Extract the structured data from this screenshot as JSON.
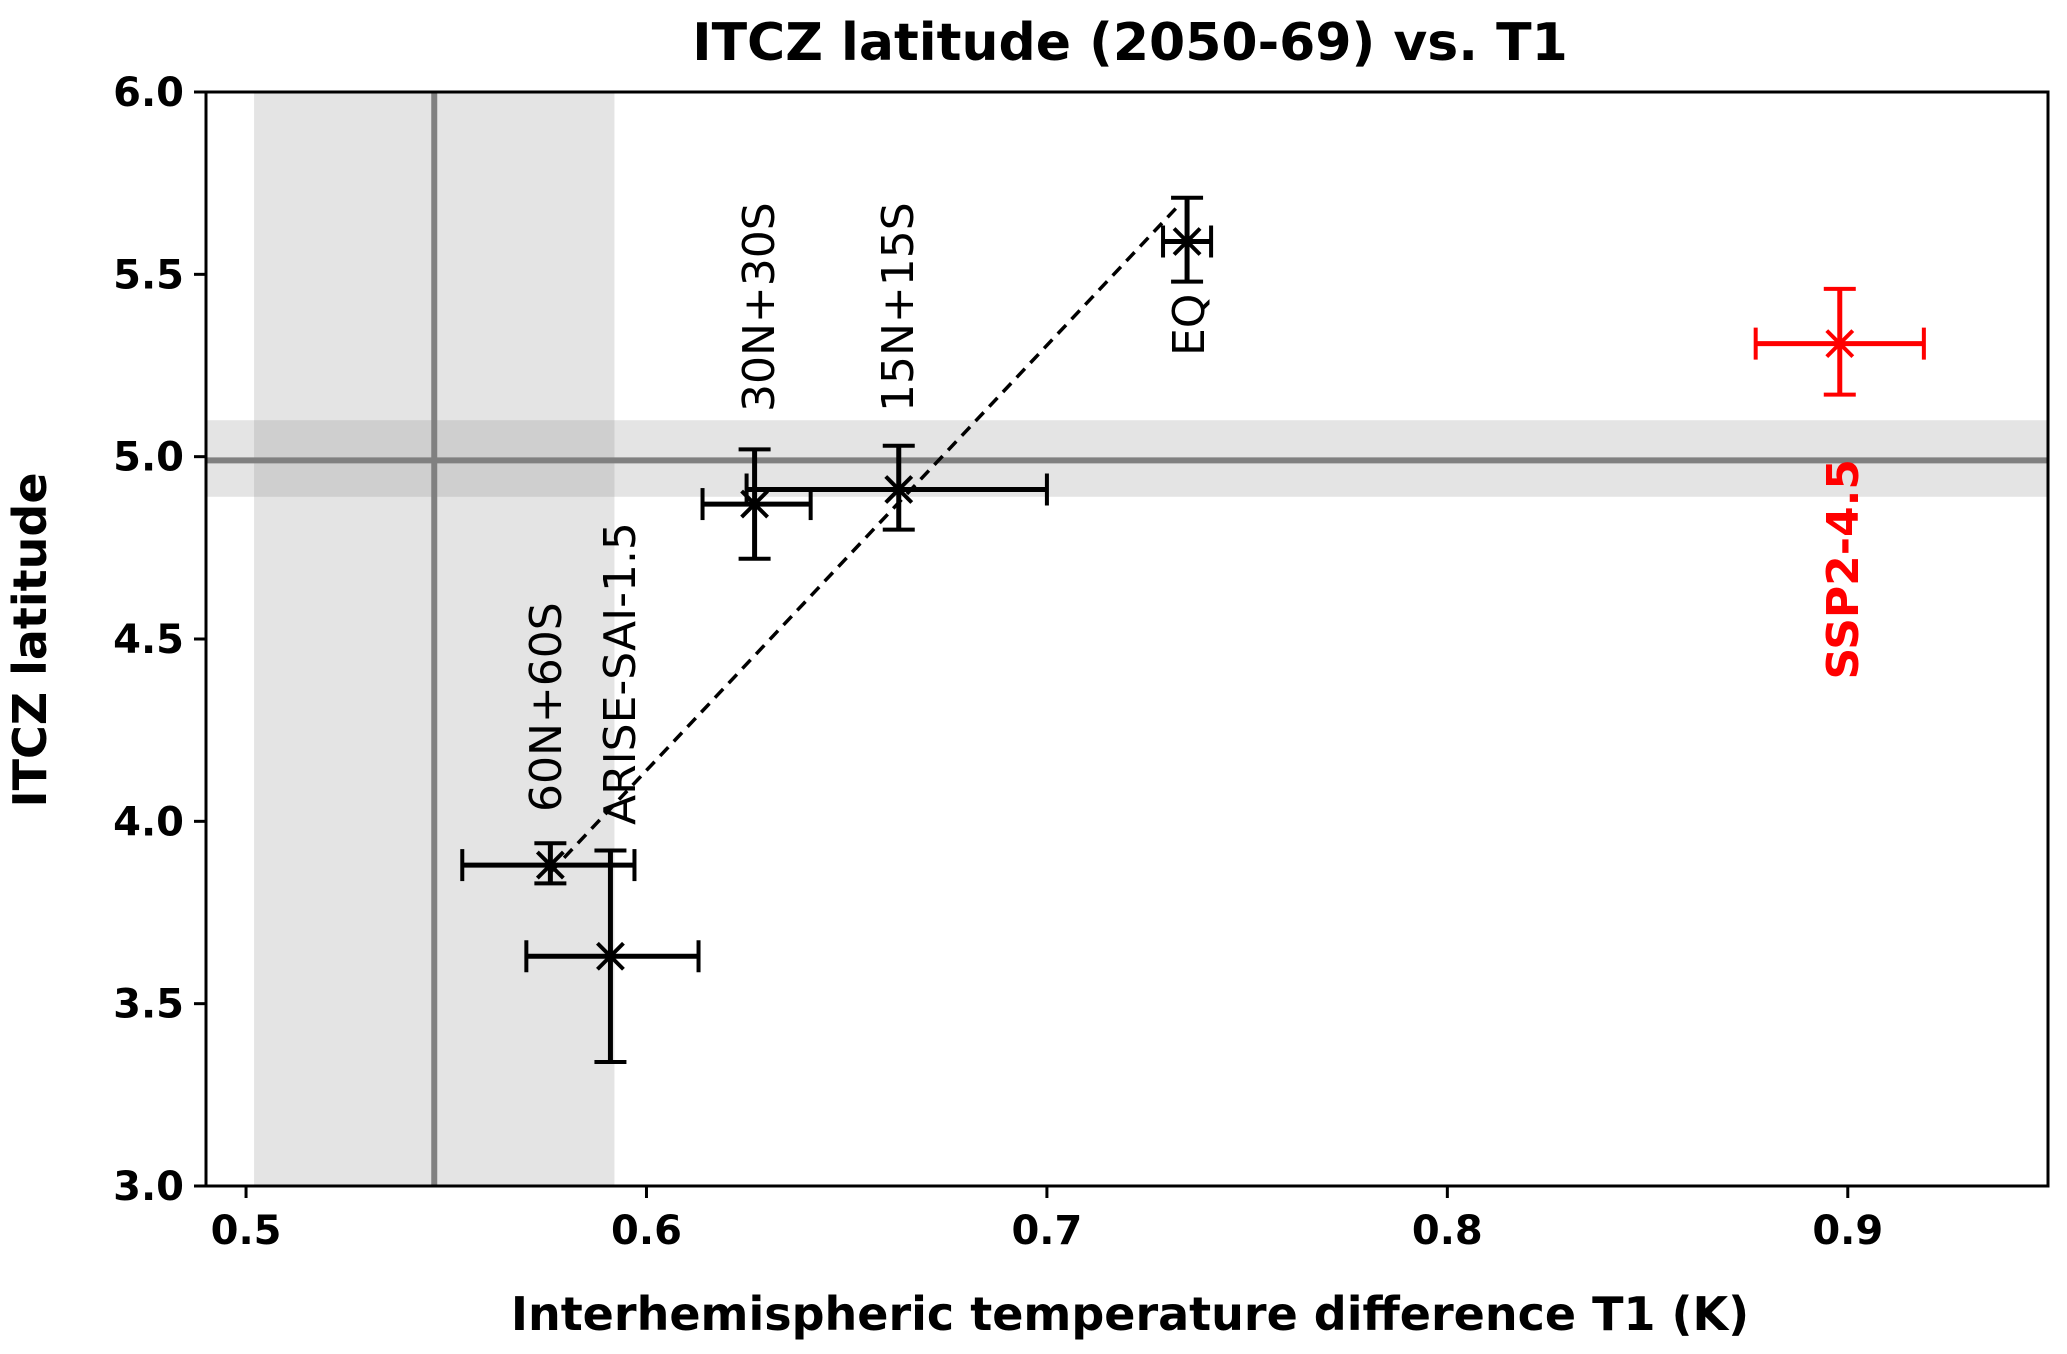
{
  "chart_data": {
    "type": "scatter",
    "title": "ITCZ latitude (2050-69) vs. T1",
    "xlabel": "Interhemispheric temperature difference T1 (K)",
    "ylabel": "ITCZ latitude",
    "xlim": [
      0.49,
      0.95
    ],
    "ylim": [
      3.0,
      6.0
    ],
    "xticks": [
      0.5,
      0.6,
      0.7,
      0.8,
      0.9
    ],
    "xtick_labels": [
      "0.5",
      "0.6",
      "0.7",
      "0.8",
      "0.9"
    ],
    "yticks": [
      3.0,
      3.5,
      4.0,
      4.5,
      5.0,
      5.5,
      6.0
    ],
    "ytick_labels": [
      "3.0",
      "3.5",
      "4.0",
      "4.5",
      "5.0",
      "5.5",
      "6.0"
    ],
    "grid": false,
    "reference": {
      "x": 0.547,
      "x_band": [
        0.502,
        0.592
      ],
      "y": 4.99,
      "y_band": [
        4.89,
        5.1
      ],
      "color": "#808080",
      "band_color": "#e3e3e3"
    },
    "points": [
      {
        "label": "60N+60S",
        "x": 0.576,
        "y": 3.88,
        "xerr": [
          0.554,
          0.597
        ],
        "yerr": [
          3.83,
          3.94
        ],
        "color": "#000000"
      },
      {
        "label": "ARISE-SAI-1.5",
        "x": 0.591,
        "y": 3.63,
        "xerr": [
          0.57,
          0.613
        ],
        "yerr": [
          3.34,
          3.92
        ],
        "color": "#000000"
      },
      {
        "label": "30N+30S",
        "x": 0.627,
        "y": 4.87,
        "xerr": [
          0.614,
          0.641
        ],
        "yerr": [
          4.72,
          5.02
        ],
        "color": "#000000"
      },
      {
        "label": "15N+15S",
        "x": 0.663,
        "y": 4.91,
        "xerr": [
          0.625,
          0.7
        ],
        "yerr": [
          4.8,
          5.03
        ],
        "color": "#000000"
      },
      {
        "label": "EQ",
        "x": 0.735,
        "y": 5.59,
        "xerr": [
          0.729,
          0.741
        ],
        "yerr": [
          5.48,
          5.71
        ],
        "color": "#000000"
      },
      {
        "label": "SSP2-4.5",
        "x": 0.898,
        "y": 5.31,
        "xerr": [
          0.877,
          0.919
        ],
        "yerr": [
          5.17,
          5.46
        ],
        "color": "#ff0000"
      }
    ],
    "fit_line": {
      "x": [
        0.576,
        0.733
      ],
      "y": [
        3.86,
        5.69
      ],
      "style": "dashed",
      "color": "#000000"
    }
  }
}
